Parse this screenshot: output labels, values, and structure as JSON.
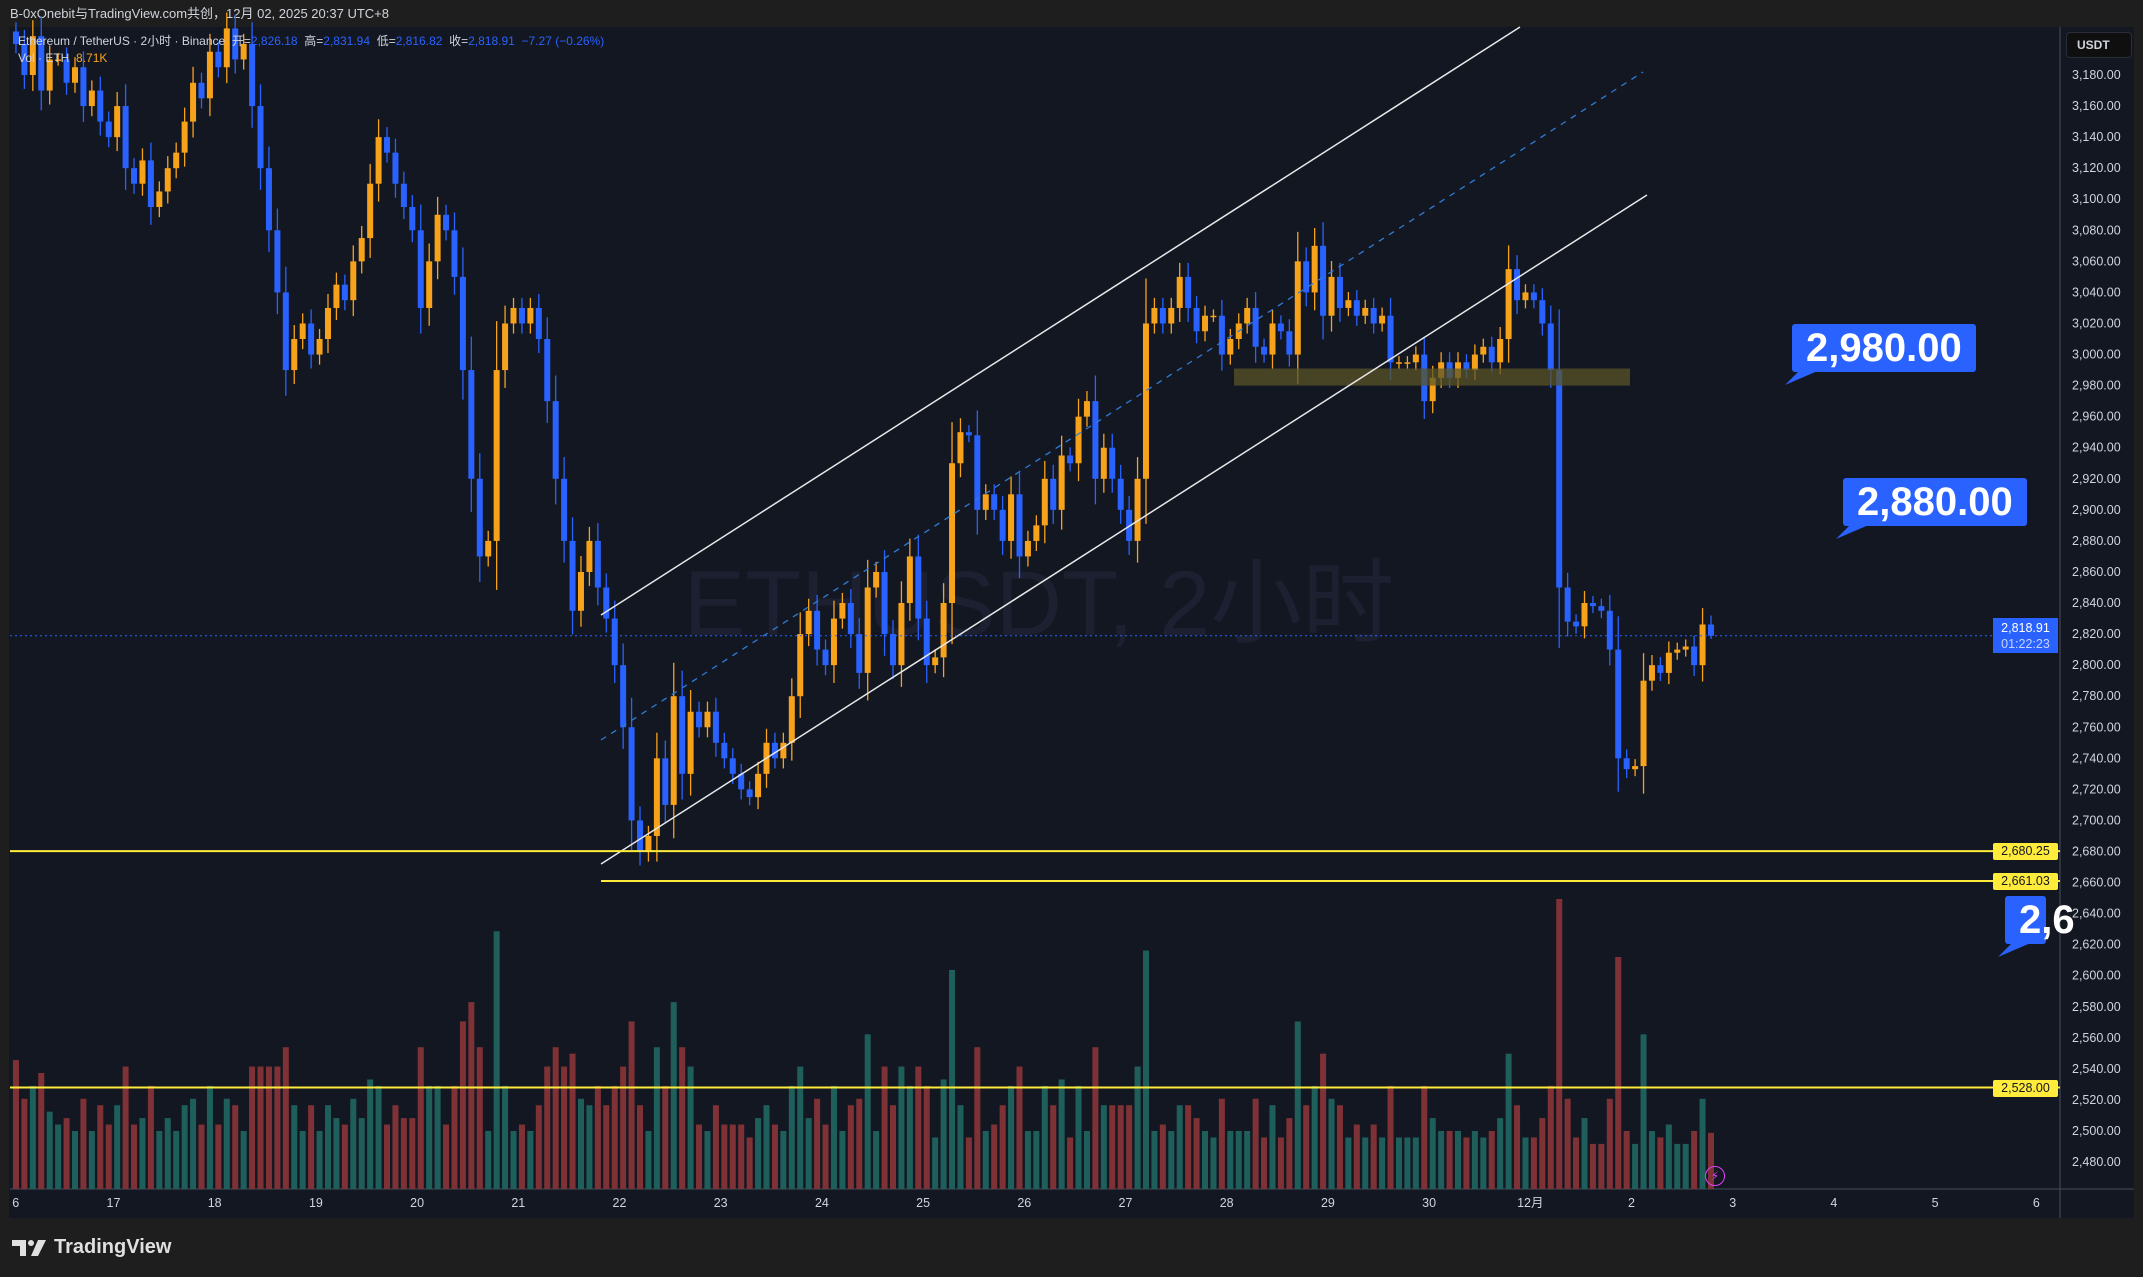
{
  "header": {
    "title": "B-0xOnebit与TradingView.com共创，12月 02, 2025 20:37 UTC+8"
  },
  "legend": {
    "symbol": "Ethereum / TetherUS · 2小时 · Binance",
    "open_label": "开=",
    "open": "2,826.18",
    "high_label": "高=",
    "high": "2,831.94",
    "low_label": "低=",
    "low": "2,816.82",
    "close_label": "收=",
    "close": "2,818.91",
    "change": "−7.27 (−0.26%)",
    "vol_label": "Vol · ETH",
    "vol_value": "8.71K"
  },
  "watermark": "ETHUSDT, 2小时",
  "price_axis": {
    "currency": "USDT",
    "ticks": [
      "3,180.00",
      "3,160.00",
      "3,140.00",
      "3,120.00",
      "3,100.00",
      "3,080.00",
      "3,060.00",
      "3,040.00",
      "3,020.00",
      "3,000.00",
      "2,980.00",
      "2,960.00",
      "2,940.00",
      "2,920.00",
      "2,900.00",
      "2,880.00",
      "2,860.00",
      "2,840.00",
      "2,820.00",
      "2,800.00",
      "2,780.00",
      "2,760.00",
      "2,740.00",
      "2,720.00",
      "2,700.00",
      "2,680.00",
      "2,660.00",
      "2,640.00",
      "2,620.00",
      "2,600.00",
      "2,580.00",
      "2,560.00",
      "2,540.00",
      "2,520.00",
      "2,500.00",
      "2,480.00"
    ],
    "current_price": "2,818.91",
    "countdown": "01:22:23"
  },
  "time_axis": {
    "labels": [
      "6",
      "17",
      "18",
      "19",
      "20",
      "21",
      "22",
      "23",
      "24",
      "25",
      "26",
      "27",
      "28",
      "29",
      "30",
      "12月",
      "2",
      "3",
      "4",
      "5",
      "6"
    ]
  },
  "levels": [
    {
      "price": 2680.25,
      "label": "2,680.25"
    },
    {
      "price": 2661.03,
      "label": "2,661.03"
    },
    {
      "price": 2528.0,
      "label": "2,528.00"
    }
  ],
  "callouts": [
    {
      "text": "2,980.00"
    },
    {
      "text": "2,880.00"
    },
    {
      "text": "2,6"
    }
  ],
  "zone": {
    "from": 2980,
    "to": 2991
  },
  "colors": {
    "up": "#f7a21b",
    "down": "#2962ff",
    "vol_up": "#1e5f5c",
    "vol_down": "#7f3236",
    "level": "#ffeb3b",
    "background": "#131722"
  },
  "footer": {
    "brand": "TradingView"
  },
  "chart_data": {
    "type": "candlestick",
    "interval": "2h",
    "last_candle": {
      "open": 2826.18,
      "high": 2831.94,
      "low": 2816.82,
      "close": 2818.91
    },
    "closes": [
      3200,
      3180,
      3205,
      3170,
      3190,
      3190,
      3175,
      3185,
      3160,
      3170,
      3150,
      3140,
      3160,
      3120,
      3110,
      3125,
      3095,
      3105,
      3120,
      3130,
      3150,
      3175,
      3165,
      3195,
      3185,
      3210,
      3190,
      3200,
      3160,
      3120,
      3080,
      3040,
      2990,
      3010,
      3020,
      3000,
      3010,
      3030,
      3045,
      3035,
      3060,
      3075,
      3110,
      3140,
      3130,
      3110,
      3095,
      3080,
      3030,
      3060,
      3090,
      3080,
      3050,
      2990,
      2920,
      2870,
      2880,
      2990,
      3020,
      3030,
      3020,
      3030,
      3010,
      2970,
      2920,
      2880,
      2835,
      2860,
      2880,
      2850,
      2830,
      2800,
      2760,
      2700,
      2680,
      2690,
      2740,
      2710,
      2780,
      2730,
      2770,
      2760,
      2770,
      2750,
      2740,
      2730,
      2720,
      2715,
      2730,
      2750,
      2740,
      2750,
      2780,
      2820,
      2835,
      2810,
      2800,
      2830,
      2840,
      2820,
      2795,
      2850,
      2860,
      2820,
      2800,
      2840,
      2870,
      2830,
      2800,
      2805,
      2840,
      2930,
      2950,
      2948,
      2900,
      2910,
      2900,
      2880,
      2910,
      2870,
      2880,
      2890,
      2920,
      2900,
      2935,
      2930,
      2960,
      2970,
      2920,
      2940,
      2920,
      2900,
      2880,
      2920,
      3020,
      3030,
      3020,
      3030,
      3050,
      3030,
      3015,
      3025,
      3025,
      3000,
      3010,
      3020,
      3030,
      3005,
      3000,
      3020,
      3015,
      3000,
      3060,
      3040,
      3070,
      3025,
      3050,
      3030,
      3035,
      3025,
      3030,
      3020,
      3025,
      2995,
      2995,
      2995,
      3000,
      2970,
      2985,
      2995,
      2985,
      2995,
      2990,
      3000,
      3005,
      2995,
      3010,
      3055,
      3035,
      3040,
      3035,
      3020,
      2990,
      2850,
      2828,
      2825,
      2840,
      2838,
      2835,
      2810,
      2740,
      2733,
      2735,
      2790,
      2800,
      2795,
      2808,
      2810,
      2812,
      2800,
      2826.18,
      2818.91
    ],
    "volumes_k": [
      20,
      14,
      16,
      18,
      12,
      10,
      11,
      9,
      14,
      9,
      13,
      10,
      13,
      19,
      10,
      11,
      16,
      9,
      11,
      9,
      13,
      14,
      10,
      16,
      10,
      14,
      13,
      9,
      19,
      19,
      19,
      19,
      22,
      13,
      9,
      13,
      9,
      13,
      11,
      10,
      14,
      11,
      17,
      16,
      10,
      13,
      11,
      11,
      22,
      16,
      16,
      10,
      16,
      26,
      29,
      22,
      9,
      40,
      16,
      9,
      10,
      9,
      13,
      19,
      22,
      19,
      21,
      14,
      13,
      16,
      13,
      16,
      19,
      26,
      13,
      9,
      22,
      16,
      29,
      22,
      19,
      10,
      9,
      13,
      10,
      10,
      10,
      8,
      11,
      13,
      10,
      9,
      16,
      19,
      11,
      14,
      10,
      16,
      9,
      13,
      14,
      24,
      9,
      19,
      13,
      19,
      16,
      19,
      16,
      8,
      17,
      34,
      13,
      8,
      22,
      9,
      10,
      13,
      16,
      19,
      9,
      9,
      16,
      13,
      17,
      8,
      16,
      9,
      22,
      13,
      13,
      13,
      13,
      19,
      37,
      9,
      10,
      9,
      13,
      13,
      11,
      9,
      8,
      14,
      9,
      9,
      9,
      14,
      8,
      13,
      8,
      11,
      26,
      13,
      16,
      21,
      14,
      13,
      8,
      10,
      8,
      10,
      8,
      16,
      8,
      8,
      8,
      16,
      11,
      9,
      9,
      9,
      8,
      9,
      8,
      9,
      11,
      21,
      13,
      8,
      8,
      11,
      16,
      45,
      14,
      8,
      11,
      7,
      7,
      14,
      36,
      9,
      7,
      24,
      9,
      8,
      10,
      7,
      7,
      9,
      14,
      8.71
    ]
  }
}
